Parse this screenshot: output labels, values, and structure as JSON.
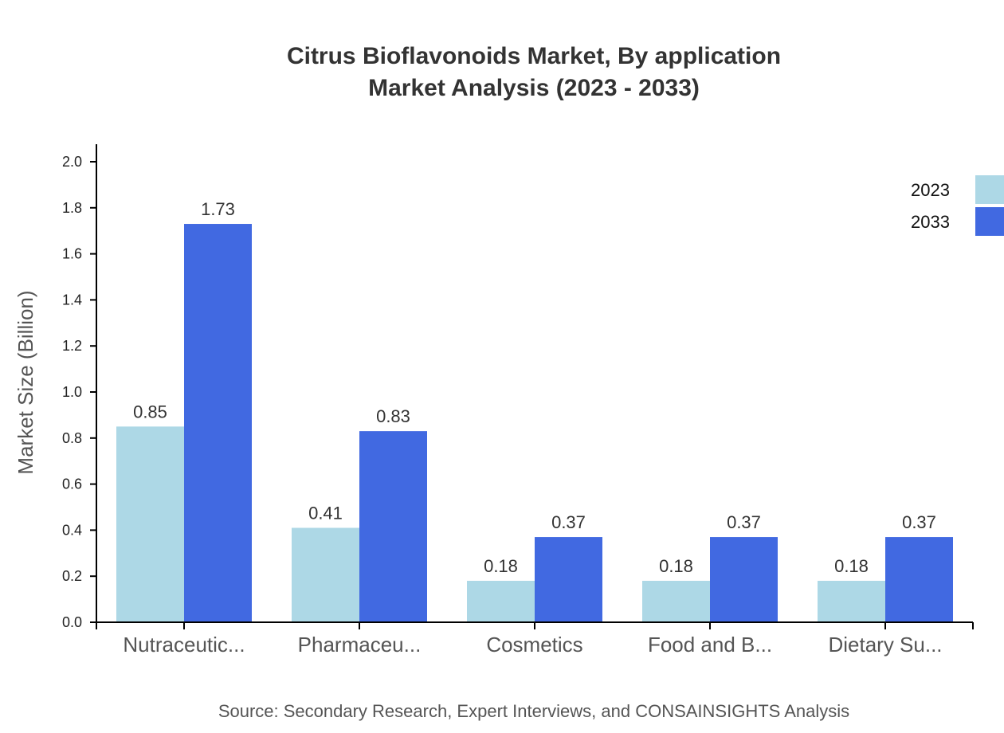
{
  "chart_data": {
    "type": "bar",
    "title_lines": [
      "Citrus Bioflavonoids Market, By application",
      "Market Analysis (2023 - 2033)"
    ],
    "ylabel": "Market Size (Billion)",
    "xlabel": "",
    "ylim": [
      0,
      2.0
    ],
    "yticks": [
      "0.0",
      "0.2",
      "0.4",
      "0.6",
      "0.8",
      "1.0",
      "1.2",
      "1.4",
      "1.6",
      "1.8",
      "2.0"
    ],
    "categories": [
      "Nutraceutic...",
      "Pharmaceu...",
      "Cosmetics",
      "Food and B...",
      "Dietary Su..."
    ],
    "series": [
      {
        "name": "2023",
        "color": "#add8e6",
        "values": [
          0.85,
          0.41,
          0.18,
          0.18,
          0.18
        ]
      },
      {
        "name": "2033",
        "color": "#4169e1",
        "values": [
          1.73,
          0.83,
          0.37,
          0.37,
          0.37
        ]
      }
    ],
    "legend_position": "top-right",
    "grid": false,
    "source": "Source: Secondary Research, Expert Interviews, and CONSAINSIGHTS Analysis"
  }
}
